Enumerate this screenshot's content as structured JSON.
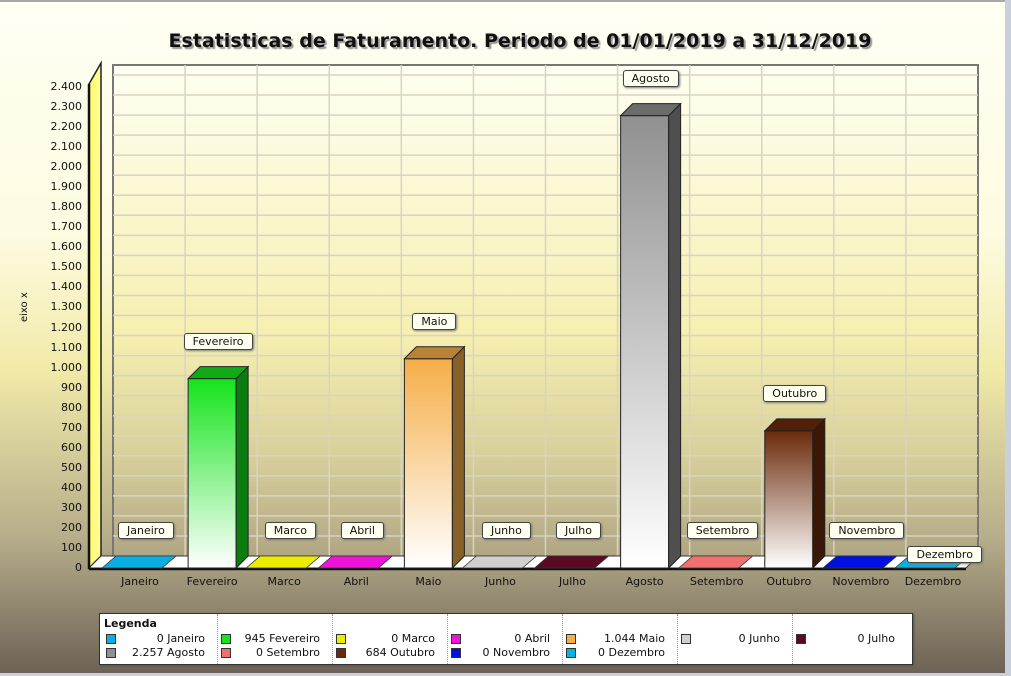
{
  "title": "Estatisticas de Faturamento. Periodo de 01/01/2019 a 31/12/2019",
  "y_axis_label": "eixo x",
  "y_ticks": [
    "0",
    "100",
    "200",
    "300",
    "400",
    "500",
    "600",
    "700",
    "800",
    "900",
    "1.000",
    "1.100",
    "1.200",
    "1.300",
    "1.400",
    "1.500",
    "1.600",
    "1.700",
    "1.800",
    "1.900",
    "2.000",
    "2.100",
    "2.200",
    "2.300",
    "2.400"
  ],
  "legend": {
    "title": "Legenda",
    "items": [
      {
        "value": "0",
        "label": "Janeiro",
        "color": "#0aaee0"
      },
      {
        "value": "945",
        "label": "Fevereiro",
        "color": "#14e41c"
      },
      {
        "value": "0",
        "label": "Marco",
        "color": "#ecec00"
      },
      {
        "value": "0",
        "label": "Abril",
        "color": "#ec14d8"
      },
      {
        "value": "1.044",
        "label": "Maio",
        "color": "#f5ae48"
      },
      {
        "value": "0",
        "label": "Junho",
        "color": "#d0d0d0"
      },
      {
        "value": "0",
        "label": "Julho",
        "color": "#5a0a22"
      },
      {
        "value": "2.257",
        "label": "Agosto",
        "color": "#909090"
      },
      {
        "value": "0",
        "label": "Setembro",
        "color": "#f07070"
      },
      {
        "value": "684",
        "label": "Outubro",
        "color": "#6b2a0a"
      },
      {
        "value": "0",
        "label": "Novembro",
        "color": "#0010e0"
      },
      {
        "value": "0",
        "label": "Dezembro",
        "color": "#0ab0e0"
      }
    ]
  },
  "chart_data": {
    "type": "bar",
    "title": "Estatisticas de Faturamento. Periodo de 01/01/2019 a 31/12/2019",
    "xlabel": "",
    "ylabel": "eixo x",
    "categories": [
      "Janeiro",
      "Fevereiro",
      "Marco",
      "Abril",
      "Maio",
      "Junho",
      "Julho",
      "Agosto",
      "Setembro",
      "Outubro",
      "Novembro",
      "Dezembro"
    ],
    "values": [
      0,
      945,
      0,
      0,
      1044,
      0,
      0,
      2257,
      0,
      684,
      0,
      0
    ],
    "colors": [
      "#0aaee0",
      "#14e41c",
      "#ecec00",
      "#ec14d8",
      "#f5ae48",
      "#d0d0d0",
      "#5a0a22",
      "#909090",
      "#f07070",
      "#6b2a0a",
      "#0010e0",
      "#0ab0e0"
    ],
    "ylim": [
      0,
      2400
    ],
    "ytick_step": 100,
    "grid": true,
    "legend_position": "bottom",
    "style": "3d"
  }
}
